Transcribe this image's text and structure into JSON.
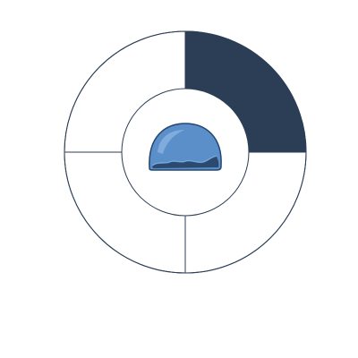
{
  "wheel": {
    "segments": [
      {
        "id": "top-right",
        "selected": true,
        "fill": "#2c3e55"
      },
      {
        "id": "bottom-right",
        "selected": false,
        "fill": "#ffffff"
      },
      {
        "id": "bottom-left",
        "selected": false,
        "fill": "#ffffff"
      },
      {
        "id": "top-left",
        "selected": false,
        "fill": "#ffffff"
      }
    ],
    "stroke_color": "#2c3e55",
    "center_icon": {
      "name": "water-dome-icon",
      "dome_color": "#5b8fc9",
      "dome_light": "#8fb6e6",
      "wave_color": "#2c4a6e",
      "outline_color": "#24466e"
    }
  }
}
